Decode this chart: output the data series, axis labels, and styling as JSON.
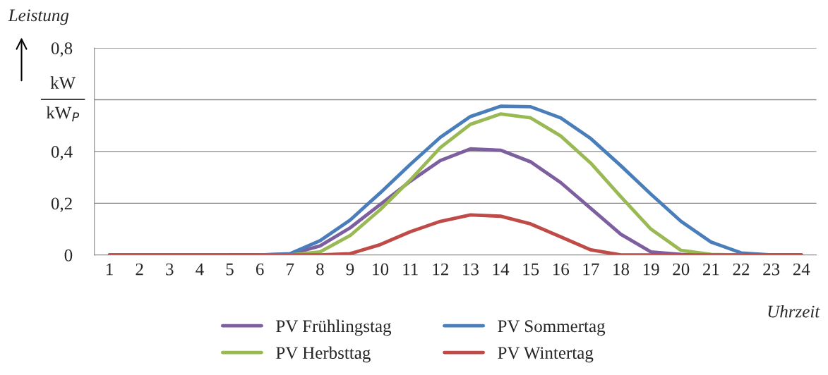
{
  "chart_data": {
    "type": "line",
    "ylabel": "Leistung",
    "xlabel": "Uhrzeit",
    "annotations": [
      "kW",
      "kW$_{P}$"
    ],
    "categories": [
      "1",
      "2",
      "3",
      "4",
      "5",
      "6",
      "7",
      "8",
      "9",
      "10",
      "11",
      "12",
      "13",
      "14",
      "15",
      "16",
      "17",
      "18",
      "19",
      "20",
      "21",
      "22",
      "23",
      "24"
    ],
    "series": [
      {
        "name": "PV Frühlingstag",
        "color": "#7d5fa0",
        "values": [
          0,
          0,
          0,
          0,
          0,
          0,
          0.003,
          0.035,
          0.105,
          0.195,
          0.285,
          0.365,
          0.41,
          0.405,
          0.36,
          0.28,
          0.18,
          0.08,
          0.012,
          0.002,
          0,
          0,
          0,
          0
        ]
      },
      {
        "name": "PV Sommertag",
        "color": "#4a7ebb",
        "values": [
          null,
          null,
          null,
          null,
          0,
          0,
          0.005,
          0.055,
          0.135,
          0.24,
          0.35,
          0.455,
          0.535,
          0.575,
          0.573,
          0.53,
          0.45,
          0.345,
          0.235,
          0.13,
          0.05,
          0.008,
          0,
          0
        ]
      },
      {
        "name": "PV Herbsttag",
        "color": "#98b954",
        "values": [
          null,
          null,
          null,
          null,
          null,
          0,
          0,
          0.012,
          0.075,
          0.175,
          0.29,
          0.415,
          0.505,
          0.545,
          0.53,
          0.46,
          0.355,
          0.225,
          0.1,
          0.018,
          0.002,
          0,
          null,
          null
        ]
      },
      {
        "name": "PV Wintertag",
        "color": "#be4b48",
        "values": [
          0,
          0,
          0,
          0,
          0,
          0,
          0,
          0,
          0.005,
          0.04,
          0.09,
          0.13,
          0.155,
          0.15,
          0.12,
          0.07,
          0.02,
          0,
          0,
          0,
          0,
          0,
          0,
          0
        ]
      }
    ],
    "ylim": [
      0,
      0.8
    ],
    "yticks": [
      {
        "value": 0,
        "label": "0"
      },
      {
        "value": 0.2,
        "label": "0,2"
      },
      {
        "value": 0.4,
        "label": "0,4"
      },
      {
        "value": 0.6,
        "label": null
      },
      {
        "value": 0.8,
        "label": "0,8"
      }
    ],
    "grid": "y",
    "legend": "bottom",
    "marker": "none",
    "line_style": "solid"
  }
}
